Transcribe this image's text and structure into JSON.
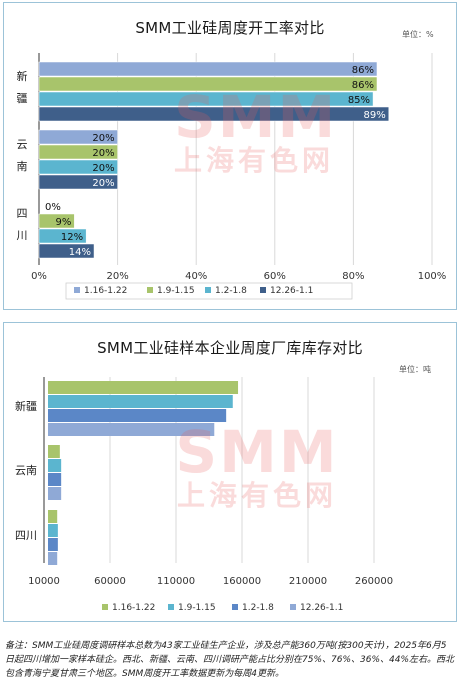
{
  "chart_data": [
    {
      "type": "bar",
      "orientation": "horizontal",
      "title": "SMM工业硅周度开工率对比",
      "unit": "单位：%",
      "categories": [
        "新\n疆",
        "云\n南",
        "四\n川"
      ],
      "series": [
        {
          "name": "1.16-1.22",
          "values": [
            86,
            20,
            0
          ],
          "labels": [
            "86%",
            "20%",
            "0%"
          ],
          "color": "#8fa9d6"
        },
        {
          "name": "1.9-1.15",
          "values": [
            86,
            20,
            9
          ],
          "labels": [
            "86%",
            "20%",
            "9%"
          ],
          "color": "#a8c46b"
        },
        {
          "name": "1.2-1.8",
          "values": [
            85,
            20,
            12
          ],
          "labels": [
            "85%",
            "20%",
            "12%"
          ],
          "color": "#5bb5cf"
        },
        {
          "name": "12.26-1.1",
          "values": [
            89,
            20,
            14
          ],
          "labels": [
            "89%",
            "20%",
            "14%"
          ],
          "color": "#3f5f8a"
        }
      ],
      "xticks": [
        "0%",
        "20%",
        "40%",
        "60%",
        "80%",
        "100%"
      ],
      "xlim": [
        0,
        100
      ],
      "grid": true,
      "legend_position": "bottom"
    },
    {
      "type": "bar",
      "orientation": "horizontal",
      "title": "SMM工业硅样本企业周度厂库库存对比",
      "unit": "单位：吨",
      "categories": [
        "新疆",
        "云南",
        "四川"
      ],
      "series": [
        {
          "name": "1.16-1.22",
          "values": [
            157000,
            22000,
            20000
          ],
          "color": "#a8c46b"
        },
        {
          "name": "1.9-1.15",
          "values": [
            153000,
            23000,
            20500
          ],
          "color": "#5bb5cf"
        },
        {
          "name": "1.2-1.8",
          "values": [
            148000,
            23000,
            20500
          ],
          "color": "#5b87c7"
        },
        {
          "name": "12.26-1.1",
          "values": [
            139000,
            23000,
            20000
          ],
          "color": "#8fa9d6"
        }
      ],
      "xticks": [
        "10000",
        "60000",
        "110000",
        "160000",
        "210000",
        "260000"
      ],
      "xlim": [
        10000,
        260000
      ],
      "grid": true,
      "legend_position": "bottom"
    }
  ],
  "watermark": {
    "logo": "SMM",
    "text": "上海有色网"
  },
  "footnote": "备注：SMM工业硅周度调研样本总数为43家工业硅生产企业，涉及总产能360万吨(按300天计)，2025年6月5日起四川增加一家样本硅企。西北、新疆、云南、四川调研产能占比分别在75%、76%、36%、44%左右。西北包含青海宁夏甘肃三个地区。SMM周度开工率数据更新为每周4更新。"
}
